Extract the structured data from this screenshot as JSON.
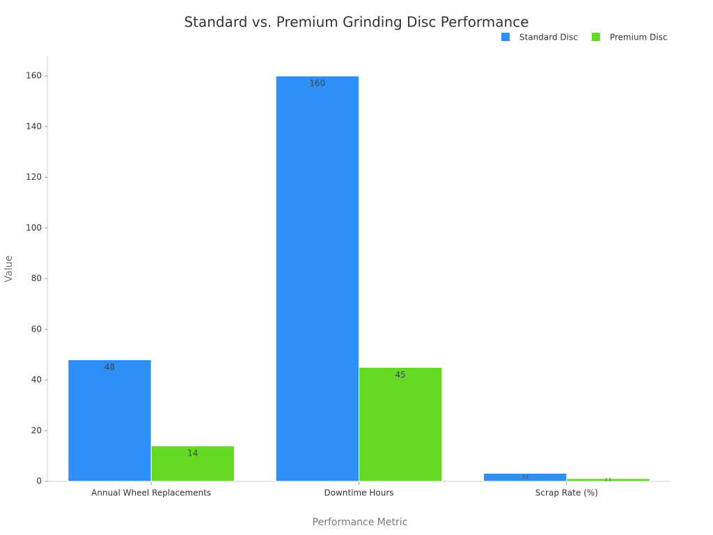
{
  "chart_data": {
    "type": "bar",
    "title": "Standard vs. Premium Grinding Disc Performance",
    "x_label": "Performance Metric",
    "y_label": "Value",
    "categories": [
      "Annual Wheel Replacements",
      "Downtime Hours",
      "Scrap Rate (%)"
    ],
    "series": [
      {
        "name": "Standard Disc",
        "color": "#2e90f7",
        "values": [
          48,
          160,
          3.2
        ]
      },
      {
        "name": "Premium Disc",
        "color": "#66d926",
        "values": [
          14,
          45,
          1.1
        ]
      }
    ],
    "ylim": [
      0,
      168
    ],
    "yticks": [
      0,
      20,
      40,
      60,
      80,
      100,
      120,
      140,
      160
    ],
    "grid": false,
    "legend": "top-right"
  }
}
